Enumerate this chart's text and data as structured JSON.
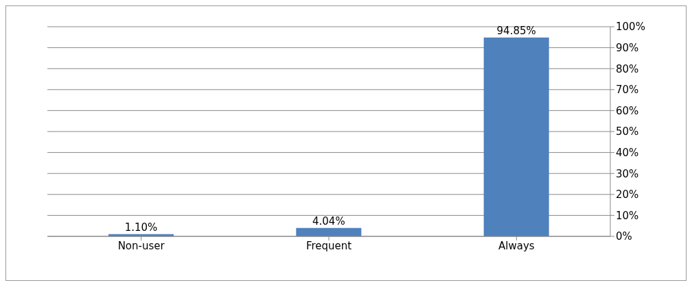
{
  "chart_data": {
    "type": "bar",
    "categories": [
      "Non-user",
      "Frequent",
      "Always"
    ],
    "values": [
      1.1,
      4.04,
      94.85
    ],
    "value_labels": [
      "1.10%",
      "4.04%",
      "94.85%"
    ],
    "color": "#4f81bd",
    "ylim": [
      0,
      100
    ],
    "yticks": [
      {
        "value": 0,
        "label": "0%"
      },
      {
        "value": 10,
        "label": "10%"
      },
      {
        "value": 20,
        "label": "20%"
      },
      {
        "value": 30,
        "label": "30%"
      },
      {
        "value": 40,
        "label": "40%"
      },
      {
        "value": 50,
        "label": "50%"
      },
      {
        "value": 60,
        "label": "60%"
      },
      {
        "value": 70,
        "label": "70%"
      },
      {
        "value": 80,
        "label": "80%"
      },
      {
        "value": 90,
        "label": "90%"
      },
      {
        "value": 100,
        "label": "100%"
      }
    ],
    "grid": "y"
  }
}
